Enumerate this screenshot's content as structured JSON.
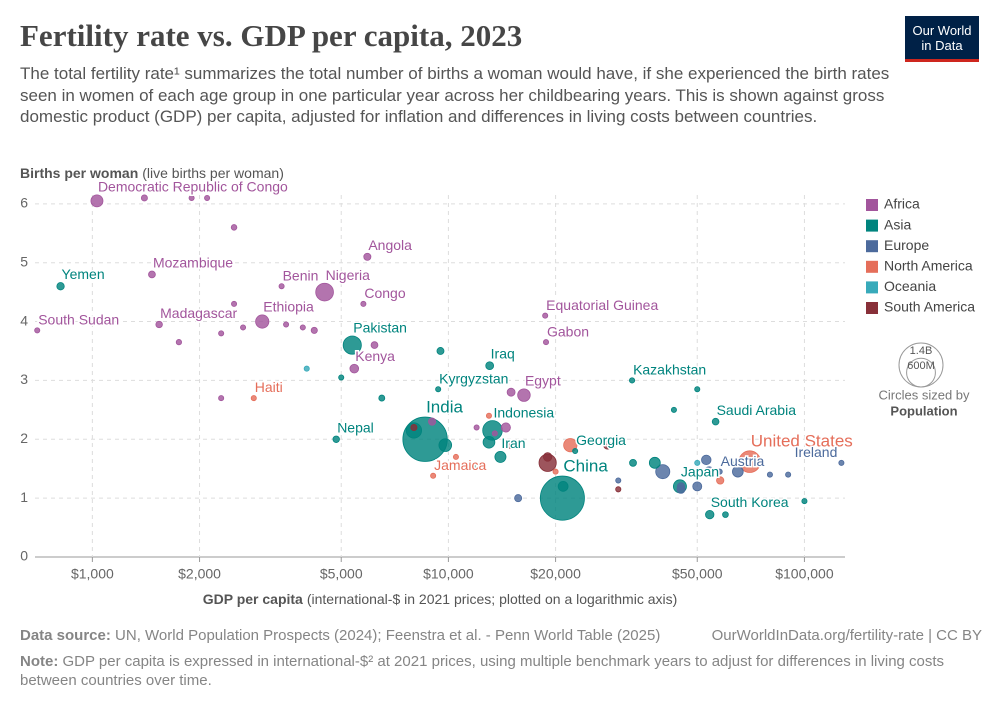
{
  "chart_data": {
    "type": "scatter",
    "title": "Fertility rate vs. GDP per capita, 2023",
    "subtitle": "The total fertility rate¹ summarizes the total number of births a woman would have, if she experienced the birth rates seen in women of each age group in one particular year across her childbearing years. This is shown against gross domestic product (GDP) per capita, adjusted for inflation and differences in living costs between countries.",
    "logo": [
      "Our World",
      "in Data"
    ],
    "y_label": "Births per woman",
    "y_label_note": "(live births per woman)",
    "x_label": "GDP per capita",
    "x_label_note": "(international-$ in 2021 prices; plotted on a logarithmic axis)",
    "source_label": "Data source:",
    "source": "UN, World Population Prospects (2024); Feenstra et al. - Penn World Table (2025)",
    "license": "OurWorldInData.org/fertility-rate | CC BY",
    "note_label": "Note:",
    "note": "GDP per capita is expressed in international-$² at 2021 prices, using multiple benchmark years to adjust for differences in living costs between countries over time.",
    "x_log": true,
    "grid": true,
    "xlim": [
      690,
      130000
    ],
    "ylim": [
      0,
      6.15
    ],
    "xticks": [
      {
        "value": 1000,
        "label": "$1,000"
      },
      {
        "value": 2000,
        "label": "$2,000"
      },
      {
        "value": 5000,
        "label": "$5,000"
      },
      {
        "value": 10000,
        "label": "$10,000"
      },
      {
        "value": 20000,
        "label": "$20,000"
      },
      {
        "value": 50000,
        "label": "$50,000"
      },
      {
        "value": 100000,
        "label": "$100,000"
      }
    ],
    "yticks": [
      0,
      1,
      2,
      3,
      4,
      5,
      6
    ],
    "legend_position": "right",
    "size_legend": {
      "values": [
        {
          "value": 1400000000,
          "label": "1.4B"
        },
        {
          "value": 600000000,
          "label": "600M"
        }
      ],
      "title": "Circles sized by",
      "title_bold": "Population"
    },
    "series": [
      {
        "name": "Africa",
        "color": "#a2559c",
        "x": [
          1030,
          5920,
          1470,
          4490,
          3400,
          3000,
          1540,
          5770,
          5440,
          16300,
          18700,
          18800,
          700,
          1400,
          1900,
          2100,
          2500,
          2500,
          3100,
          3500,
          2650,
          2300,
          1750,
          3900,
          6200,
          4200,
          9000,
          15000,
          14500,
          2300,
          12000,
          13500
        ],
        "values": [
          6.05,
          5.1,
          4.8,
          4.5,
          4.6,
          4.0,
          3.95,
          4.3,
          3.2,
          2.75,
          4.1,
          3.65,
          3.85,
          6.1,
          6.1,
          6.1,
          5.6,
          4.3,
          4.3,
          3.95,
          3.9,
          3.8,
          3.65,
          3.9,
          3.6,
          3.85,
          2.3,
          2.8,
          2.2,
          2.7,
          2.2,
          2.1
        ],
        "sizes": [
          105000000,
          37000000,
          34000000,
          228000000,
          14000000,
          128000000,
          31000000,
          6000000,
          55000000,
          114000000,
          1700000,
          2500000,
          11000000,
          27000000,
          18000000,
          17000000,
          23000000,
          10000000,
          20000000,
          13000000,
          9000000,
          8000000,
          21000000,
          17000000,
          34000000,
          28000000,
          38000000,
          46000000,
          61000000,
          2000000,
          3000000,
          12000000
        ],
        "labels": [
          "Democratic Republic of Congo",
          "Angola",
          "Mozambique",
          "Nigeria",
          "Benin",
          "Ethiopia",
          "Madagascar",
          "Congo",
          "Kenya",
          "Egypt",
          "Equatorial Guinea",
          "Gabon",
          "South Sudan",
          null,
          null,
          null,
          null,
          null,
          null,
          null,
          null,
          null,
          null,
          null,
          null,
          null,
          null,
          null,
          null,
          null,
          null,
          null
        ]
      },
      {
        "name": "Asia",
        "color": "#00847e",
        "x": [
          814,
          5370,
          13060,
          9360,
          8600,
          13300,
          14000,
          4840,
          20900,
          22700,
          32800,
          56300,
          44700,
          54200,
          9800,
          8000,
          13000,
          38000,
          21000,
          9500,
          50000,
          5000,
          12000,
          43000,
          60000,
          100000,
          33000,
          6500
        ],
        "values": [
          4.6,
          3.6,
          3.25,
          2.85,
          2.0,
          2.15,
          1.7,
          2.0,
          1.0,
          1.8,
          3.0,
          2.3,
          1.2,
          0.72,
          1.9,
          2.15,
          1.95,
          1.6,
          1.2,
          3.5,
          2.85,
          3.05,
          1.55,
          2.5,
          0.72,
          0.95,
          1.6,
          2.7
        ],
        "sizes": [
          40000000,
          240000000,
          45000000,
          7000000,
          1430000000,
          277000000,
          89000000,
          31000000,
          1410000000,
          3700000,
          20000000,
          33000000,
          124000000,
          52000000,
          117000000,
          172000000,
          100000000,
          87000000,
          71000000,
          36000000,
          9000000,
          10000000,
          20000000,
          10000000,
          24000000,
          6000000,
          35000000,
          26000000
        ],
        "labels": [
          "Yemen",
          "Pakistan",
          "Iraq",
          "Kyrgyzstan",
          "India",
          "Indonesia",
          "Iran",
          "Nepal",
          "China",
          "Georgia",
          "Kazakhstan",
          "Saudi Arabia",
          "Japan",
          "South Korea",
          null,
          null,
          null,
          null,
          null,
          null,
          null,
          null,
          null,
          null,
          null,
          null,
          null,
          null
        ]
      },
      {
        "name": "Europe",
        "color": "#4c6a9c",
        "x": [
          127000,
          57800,
          65000,
          40000,
          54000,
          53000,
          50000,
          45000,
          45000,
          15700,
          90000,
          80000,
          30000
        ],
        "values": [
          1.6,
          1.45,
          1.45,
          1.45,
          1.45,
          1.65,
          1.2,
          1.2,
          1.15,
          1.0,
          1.4,
          1.4,
          1.3
        ],
        "sizes": [
          5000000,
          9000000,
          84000000,
          144000000,
          68000000,
          66000000,
          59000000,
          38000000,
          48000000,
          37000000,
          5500000,
          9000000,
          10000000
        ],
        "labels": [
          "Ireland",
          "Austria",
          null,
          null,
          null,
          null,
          null,
          null,
          null,
          null,
          null,
          null,
          null
        ]
      },
      {
        "name": "North America",
        "color": "#e56e5a",
        "x": [
          70200,
          2840,
          9060,
          22000,
          58000,
          13000,
          20000,
          10500
        ],
        "values": [
          1.62,
          2.7,
          1.38,
          1.9,
          1.3,
          2.4,
          1.45,
          1.7
        ],
        "sizes": [
          340000000,
          12000000,
          3000000,
          129000000,
          39000000,
          18000000,
          5000000,
          10000000
        ],
        "labels": [
          "United States",
          "Haiti",
          "Jamaica",
          null,
          null,
          null,
          null,
          null
        ]
      },
      {
        "name": "Oceania",
        "color": "#38aaba",
        "x": [
          62000,
          50000,
          4000
        ],
        "values": [
          1.6,
          1.6,
          3.2
        ],
        "sizes": [
          27000000,
          5000000,
          10000000
        ],
        "labels": [
          null,
          null,
          null
        ]
      },
      {
        "name": "South America",
        "color": "#883039",
        "x": [
          19000,
          28000,
          19000,
          30000,
          15000,
          8000
        ],
        "values": [
          1.6,
          1.9,
          1.7,
          1.15,
          1.9,
          2.2
        ],
        "sizes": [
          216000000,
          46000000,
          52000000,
          20000000,
          34000000,
          28000000
        ],
        "labels": [
          null,
          null,
          null,
          null,
          null,
          null
        ]
      }
    ]
  }
}
